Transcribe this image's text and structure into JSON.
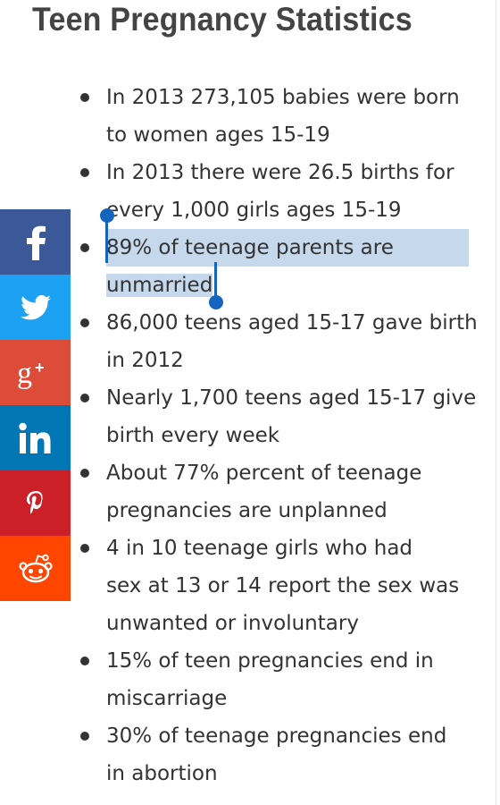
{
  "article": {
    "title": "Teen Pregnancy Statistics",
    "items": [
      {
        "lines": [
          "In 2013 273,105 babies were born",
          "to women ages 15-19"
        ]
      },
      {
        "lines": [
          "In 2013 there were 26.5 births for",
          "every 1,000 girls ages 15-19"
        ]
      },
      {
        "lines": [
          "89% of teenage parents are",
          "unmarried"
        ],
        "selected": true
      },
      {
        "lines": [
          "86,000 teens aged 15-17 gave birth",
          "in 2012"
        ]
      },
      {
        "lines": [
          "Nearly 1,700 teens aged 15-17 give",
          "birth every week"
        ]
      },
      {
        "lines": [
          "About 77% percent of teenage",
          "pregnancies are unplanned"
        ]
      },
      {
        "lines": [
          "4 in 10 teenage girls who had",
          "sex at 13 or 14 report the sex was",
          "unwanted or involuntary"
        ]
      },
      {
        "lines": [
          "15% of teen pregnancies end in",
          "miscarriage"
        ]
      },
      {
        "lines": [
          "30% of teenage pregnancies end",
          "in abortion"
        ]
      }
    ]
  },
  "share_bar": {
    "buttons": [
      {
        "network": "facebook",
        "icon": "facebook-icon",
        "color": "#3b5998"
      },
      {
        "network": "twitter",
        "icon": "twitter-icon",
        "color": "#1da1f2"
      },
      {
        "network": "google-plus",
        "icon": "google-plus-icon",
        "color": "#dd4b39"
      },
      {
        "network": "linkedin",
        "icon": "linkedin-icon",
        "color": "#0077b5"
      },
      {
        "network": "pinterest",
        "icon": "pinterest-icon",
        "color": "#cb2027"
      },
      {
        "network": "reddit",
        "icon": "reddit-icon",
        "color": "#ff4500"
      }
    ]
  },
  "selection": {
    "color": "#c6d9ec",
    "handle_color": "#1565c0"
  }
}
